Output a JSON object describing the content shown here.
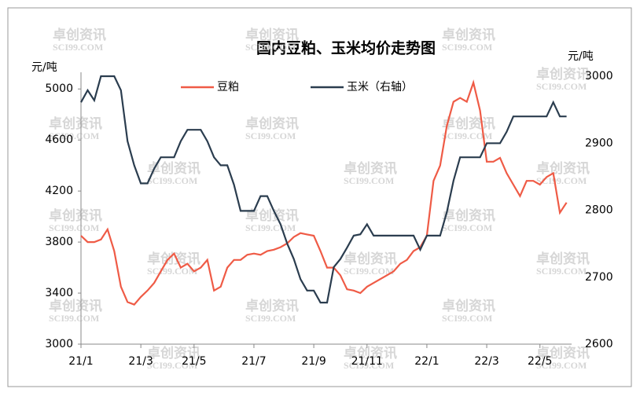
{
  "chart_data": {
    "type": "line",
    "title": "国内豆粕、玉米均价走势图",
    "ylabel": "元/吨",
    "y2label": "元/吨",
    "watermark": {
      "cn": "卓创资讯",
      "en": "SCI99.COM"
    },
    "categories": [
      "21/1",
      null,
      null,
      null,
      null,
      null,
      null,
      null,
      null,
      "21/3",
      null,
      null,
      null,
      null,
      null,
      null,
      null,
      "21/5",
      null,
      null,
      null,
      null,
      null,
      null,
      null,
      null,
      "21/7",
      null,
      null,
      null,
      null,
      null,
      null,
      null,
      null,
      "21/9",
      null,
      null,
      null,
      null,
      null,
      null,
      null,
      "21/11",
      null,
      null,
      null,
      null,
      null,
      null,
      null,
      null,
      "22/1",
      null,
      null,
      null,
      null,
      null,
      null,
      null,
      null,
      "22/3",
      null,
      null,
      null,
      null,
      null,
      null,
      null,
      "22/5",
      null,
      null,
      null,
      null
    ],
    "ylim": [
      3000,
      5100
    ],
    "yticks": [
      3000,
      3400,
      3800,
      4200,
      4600,
      5000
    ],
    "y2lim": [
      2600,
      3000
    ],
    "y2ticks": [
      2600,
      2700,
      2800,
      2900,
      3000
    ],
    "series": [
      {
        "name": "豆粕",
        "color": "#ef5b46",
        "values": [
          3850,
          3800,
          3800,
          3820,
          3900,
          3730,
          3450,
          3330,
          3310,
          3370,
          3420,
          3480,
          3570,
          3660,
          3710,
          3600,
          3630,
          3570,
          3600,
          3660,
          3420,
          3450,
          3600,
          3660,
          3660,
          3700,
          3710,
          3700,
          3730,
          3740,
          3760,
          3790,
          3840,
          3870,
          3860,
          3850,
          3730,
          3600,
          3600,
          3540,
          3430,
          3420,
          3400,
          3450,
          3480,
          3510,
          3540,
          3570,
          3630,
          3660,
          3730,
          3760,
          3850,
          4280,
          4400,
          4710,
          4900,
          4930,
          4900,
          5050,
          4830,
          4430,
          4430,
          4460,
          4340,
          4250,
          4160,
          4280,
          4280,
          4250,
          4310,
          4340,
          4030,
          4110
        ]
      },
      {
        "name": "玉米（右轴）",
        "color": "#2b3d4f",
        "axis": "y2",
        "values": [
          2961,
          2979,
          2964,
          3000,
          3000,
          3000,
          2979,
          2903,
          2867,
          2840,
          2840,
          2862,
          2879,
          2879,
          2879,
          2903,
          2920,
          2920,
          2920,
          2903,
          2879,
          2867,
          2867,
          2838,
          2799,
          2799,
          2799,
          2821,
          2821,
          2799,
          2779,
          2750,
          2727,
          2697,
          2680,
          2680,
          2662,
          2662,
          2715,
          2727,
          2744,
          2762,
          2764,
          2779,
          2762,
          2762,
          2762,
          2762,
          2762,
          2762,
          2762,
          2741,
          2762,
          2762,
          2762,
          2797,
          2844,
          2879,
          2879,
          2879,
          2879,
          2900,
          2900,
          2900,
          2917,
          2940,
          2940,
          2940,
          2940,
          2940,
          2940,
          2961,
          2940,
          2940
        ]
      }
    ]
  }
}
